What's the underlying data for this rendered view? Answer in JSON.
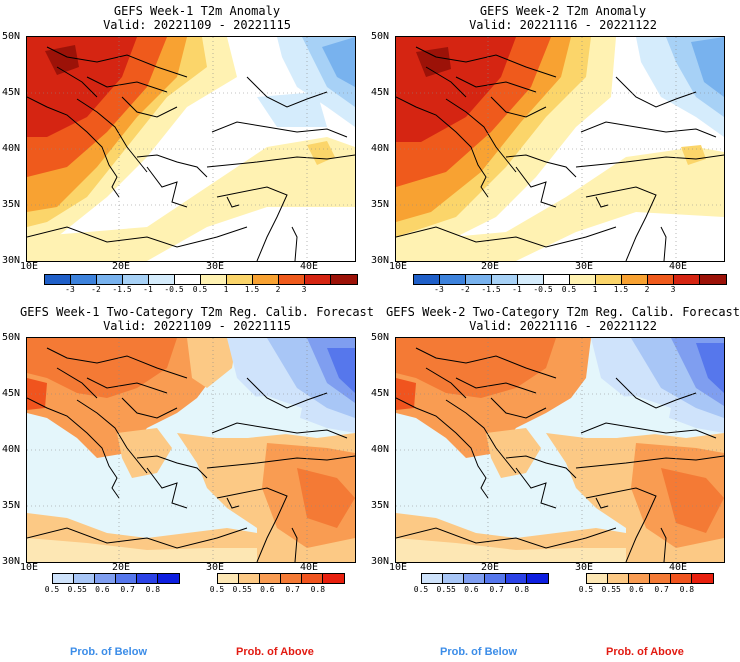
{
  "panels": {
    "week1_anom": {
      "title": "GEFS Week-1 T2m Anomaly",
      "valid": "Valid: 20221109 - 20221115"
    },
    "week2_anom": {
      "title": "GEFS Week-2 T2m Anomaly",
      "valid": "Valid: 20221116 - 20221122"
    },
    "week1_prob": {
      "title": "GEFS Week-1 Two-Category T2m Reg. Calib. Forecast",
      "valid": "Valid: 20221109 - 20221115"
    },
    "week2_prob": {
      "title": "GEFS Week-2 Two-Category T2m Reg. Calib. Forecast",
      "valid": "Valid: 20221116 - 20221122"
    }
  },
  "lat_labels": [
    "50N",
    "45N",
    "40N",
    "35N",
    "30N"
  ],
  "lon_labels": [
    "10E",
    "20E",
    "30E",
    "40E"
  ],
  "anomaly_colorbar": {
    "labels": [
      "-3",
      "-2",
      "-1.5",
      "-1",
      "-0.5",
      "0.5",
      "1",
      "1.5",
      "2",
      "3"
    ],
    "colors": [
      "#1f5fc8",
      "#3d82dc",
      "#78b2ee",
      "#a7d1f6",
      "#d5ecfc",
      "#ffffff",
      "#fff2b2",
      "#fbd56a",
      "#f8a232",
      "#ef5a1c",
      "#d52512",
      "#9c1208"
    ]
  },
  "below_colorbar": {
    "labels": [
      "0.5",
      "0.55",
      "0.6",
      "0.7",
      "0.8"
    ],
    "colors": [
      "#cfe3fb",
      "#a8c6f6",
      "#7f9ef0",
      "#5677ec",
      "#2b42e6",
      "#0d1ee0"
    ]
  },
  "above_colorbar": {
    "labels": [
      "0.5",
      "0.55",
      "0.6",
      "0.7",
      "0.8"
    ],
    "colors": [
      "#fde7b4",
      "#fcc985",
      "#f99c52",
      "#f47a35",
      "#f0541e",
      "#e8200e"
    ]
  },
  "legend": {
    "below": "Prob. of Below",
    "above": "Prob. of Above",
    "below_color": "#3c8de8",
    "above_color": "#e21b12"
  }
}
